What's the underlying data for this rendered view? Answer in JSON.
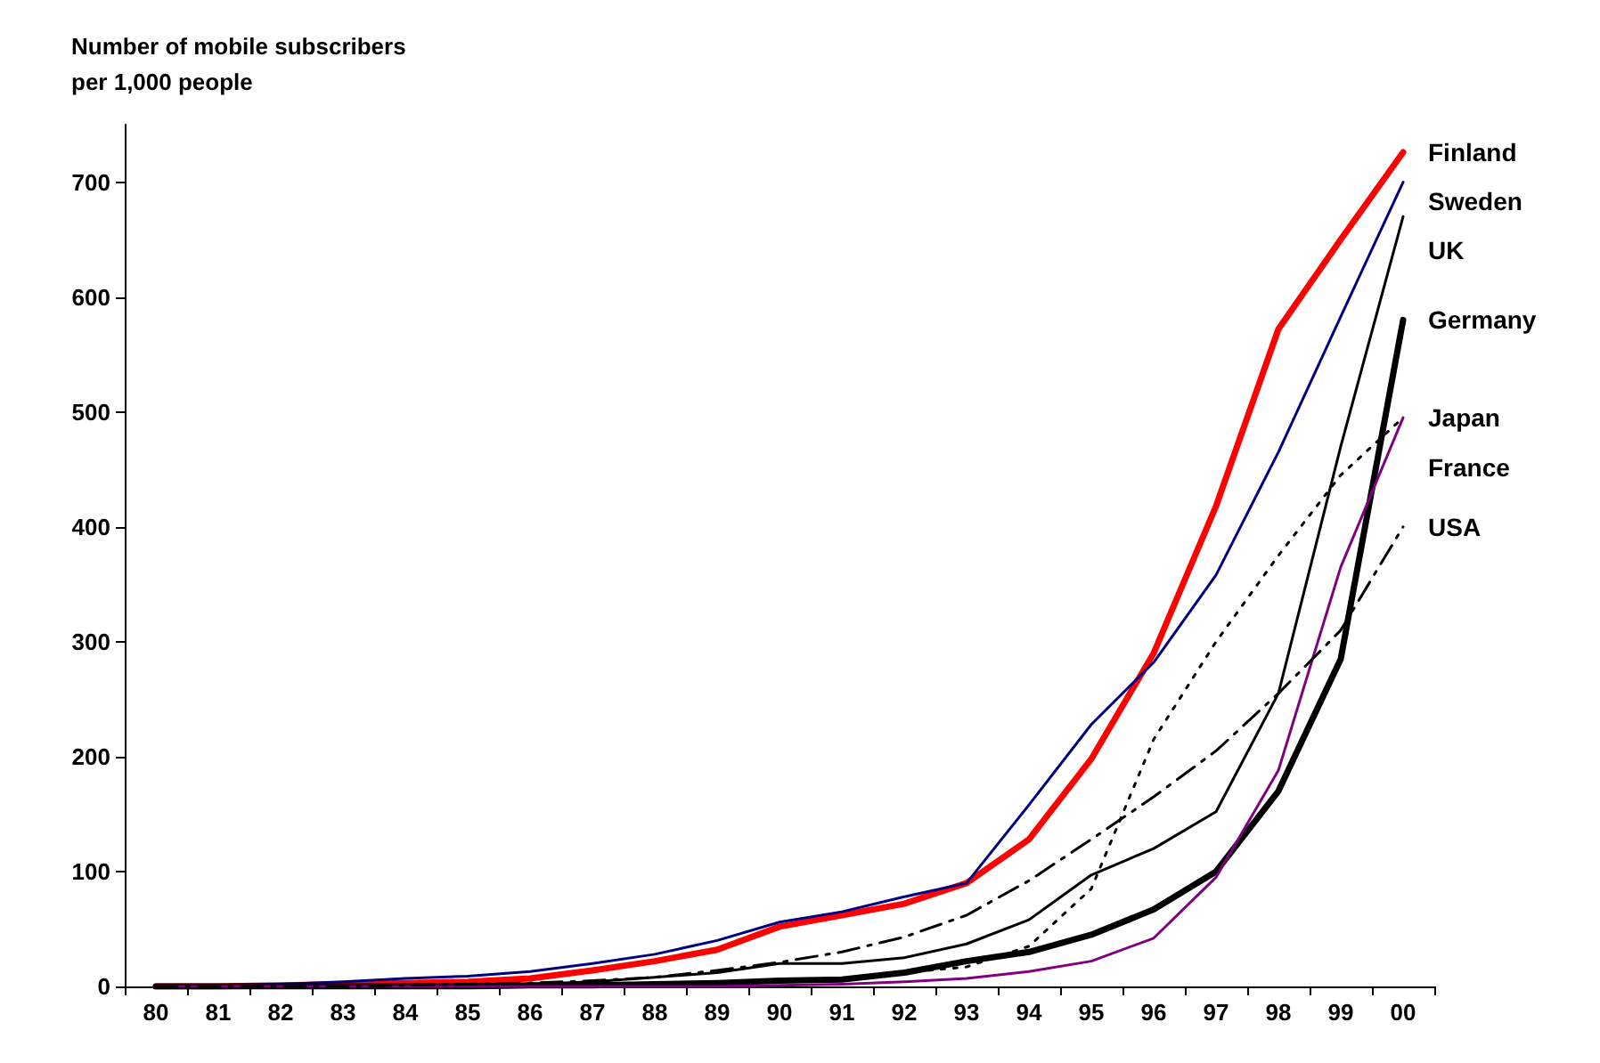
{
  "chart_data": {
    "type": "line",
    "ylabel": "Number of mobile subscribers\nper 1,000 people",
    "categories": [
      "80",
      "81",
      "82",
      "83",
      "84",
      "85",
      "86",
      "87",
      "88",
      "89",
      "90",
      "91",
      "92",
      "93",
      "94",
      "95",
      "96",
      "97",
      "98",
      "99",
      "00"
    ],
    "series": [
      {
        "name": "Finland",
        "color": "#ff0000",
        "line_style": "solid",
        "values": [
          0,
          0,
          1,
          2,
          3,
          4,
          7,
          14,
          22,
          32,
          52,
          62,
          72,
          90,
          128,
          198,
          290,
          418,
          572,
          650,
          726
        ]
      },
      {
        "name": "Sweden",
        "color": "#000080",
        "line_style": "solid",
        "values": [
          1,
          1,
          2,
          4,
          7,
          9,
          13,
          20,
          28,
          40,
          56,
          65,
          78,
          90,
          158,
          228,
          282,
          358,
          465,
          583,
          700
        ]
      },
      {
        "name": "UK",
        "color": "#000000",
        "line_style": "solid",
        "values": [
          0,
          0,
          0,
          0,
          1,
          1,
          2,
          4,
          8,
          12,
          20,
          20,
          25,
          37,
          58,
          97,
          120,
          152,
          255,
          470,
          670
        ]
      },
      {
        "name": "Germany",
        "color": "#000000",
        "line_style": "solid",
        "values": [
          0,
          0,
          0,
          0,
          0,
          0,
          1,
          1,
          2,
          3,
          5,
          6,
          12,
          22,
          30,
          45,
          67,
          100,
          170,
          285,
          580
        ]
      },
      {
        "name": "Japan",
        "color": "#000000",
        "line_style": "dotted",
        "values": [
          0,
          0,
          0,
          0,
          0,
          0,
          0,
          1,
          2,
          3,
          4,
          7,
          12,
          17,
          35,
          85,
          215,
          300,
          375,
          445,
          495
        ]
      },
      {
        "name": "France",
        "color": "#800080",
        "line_style": "solid",
        "values": [
          0,
          0,
          0,
          0,
          0,
          0,
          0,
          0,
          0,
          0,
          1,
          2,
          4,
          7,
          13,
          22,
          42,
          95,
          188,
          365,
          495
        ]
      },
      {
        "name": "USA",
        "color": "#000000",
        "line_style": "dashed",
        "values": [
          0,
          0,
          0,
          0,
          1,
          2,
          3,
          5,
          8,
          14,
          21,
          30,
          43,
          62,
          92,
          128,
          165,
          205,
          255,
          310,
          400
        ]
      }
    ],
    "ylim": [
      0,
      750
    ],
    "yticks": [
      0,
      100,
      200,
      300,
      400,
      500,
      600,
      700
    ],
    "grid": false,
    "legend": false,
    "marker": "none"
  }
}
